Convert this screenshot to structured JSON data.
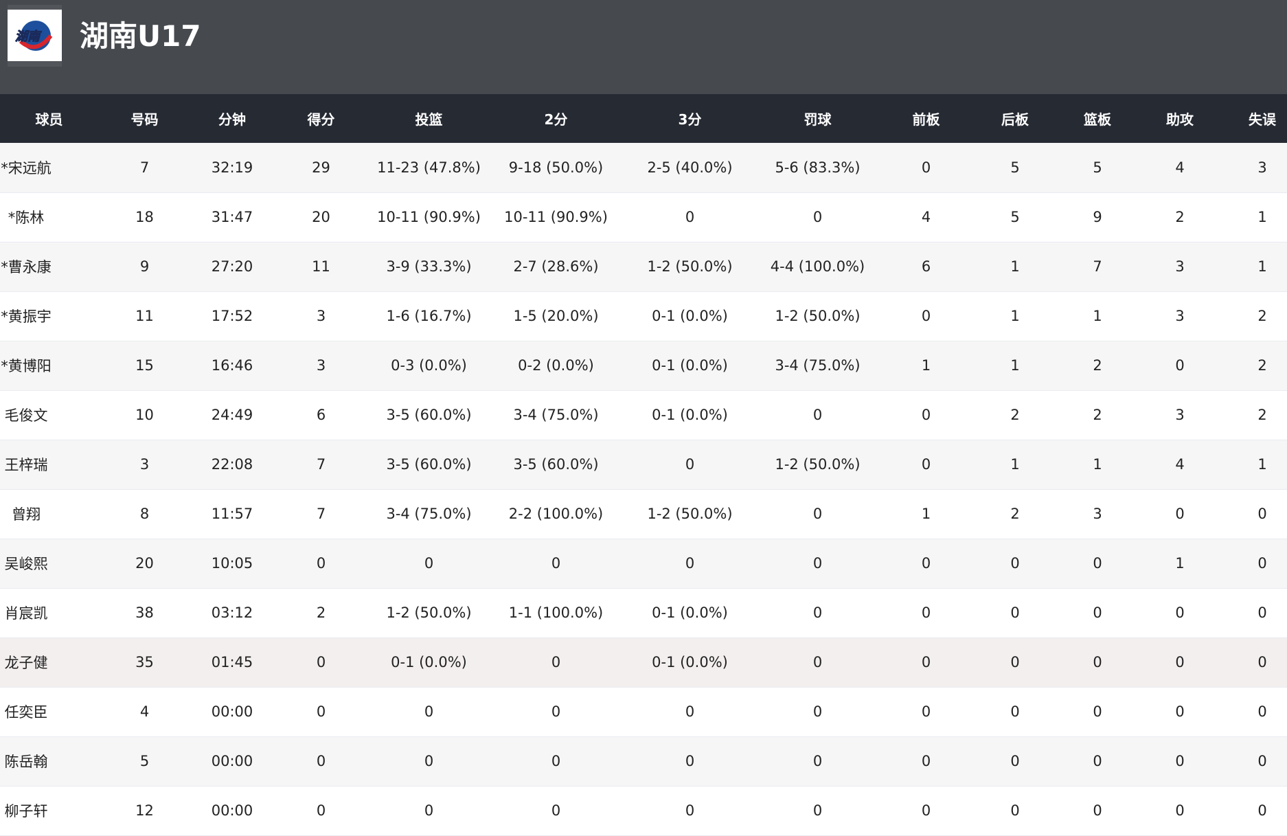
{
  "team": {
    "name": "湖南U17",
    "logo_text": "湖南"
  },
  "columns": [
    "球员",
    "号码",
    "分钟",
    "得分",
    "投篮",
    "2分",
    "3分",
    "罚球",
    "前板",
    "后板",
    "篮板",
    "助攻",
    "失误"
  ],
  "rows": [
    [
      "*宋远航",
      "7",
      "32:19",
      "29",
      "11-23 (47.8%)",
      "9-18 (50.0%)",
      "2-5 (40.0%)",
      "5-6 (83.3%)",
      "0",
      "5",
      "5",
      "4",
      "3"
    ],
    [
      "*陈林",
      "18",
      "31:47",
      "20",
      "10-11 (90.9%)",
      "10-11 (90.9%)",
      "0",
      "0",
      "4",
      "5",
      "9",
      "2",
      "1"
    ],
    [
      "*曹永康",
      "9",
      "27:20",
      "11",
      "3-9 (33.3%)",
      "2-7 (28.6%)",
      "1-2 (50.0%)",
      "4-4 (100.0%)",
      "6",
      "1",
      "7",
      "3",
      "1"
    ],
    [
      "*黄振宇",
      "11",
      "17:52",
      "3",
      "1-6 (16.7%)",
      "1-5 (20.0%)",
      "0-1 (0.0%)",
      "1-2 (50.0%)",
      "0",
      "1",
      "1",
      "3",
      "2"
    ],
    [
      "*黄博阳",
      "15",
      "16:46",
      "3",
      "0-3 (0.0%)",
      "0-2 (0.0%)",
      "0-1 (0.0%)",
      "3-4 (75.0%)",
      "1",
      "1",
      "2",
      "0",
      "2"
    ],
    [
      "毛俊文",
      "10",
      "24:49",
      "6",
      "3-5 (60.0%)",
      "3-4 (75.0%)",
      "0-1 (0.0%)",
      "0",
      "0",
      "2",
      "2",
      "3",
      "2"
    ],
    [
      "王梓瑞",
      "3",
      "22:08",
      "7",
      "3-5 (60.0%)",
      "3-5 (60.0%)",
      "0",
      "1-2 (50.0%)",
      "0",
      "1",
      "1",
      "4",
      "1"
    ],
    [
      "曾翔",
      "8",
      "11:57",
      "7",
      "3-4 (75.0%)",
      "2-2 (100.0%)",
      "1-2 (50.0%)",
      "0",
      "1",
      "2",
      "3",
      "0",
      "0"
    ],
    [
      "吴峻熙",
      "20",
      "10:05",
      "0",
      "0",
      "0",
      "0",
      "0",
      "0",
      "0",
      "0",
      "1",
      "0"
    ],
    [
      "肖宸凯",
      "38",
      "03:12",
      "2",
      "1-2 (50.0%)",
      "1-1 (100.0%)",
      "0-1 (0.0%)",
      "0",
      "0",
      "0",
      "0",
      "0",
      "0"
    ],
    [
      "龙子健",
      "35",
      "01:45",
      "0",
      "0-1 (0.0%)",
      "0",
      "0-1 (0.0%)",
      "0",
      "0",
      "0",
      "0",
      "0",
      "0"
    ],
    [
      "任奕臣",
      "4",
      "00:00",
      "0",
      "0",
      "0",
      "0",
      "0",
      "0",
      "0",
      "0",
      "0",
      "0"
    ],
    [
      "陈岳翰",
      "5",
      "00:00",
      "0",
      "0",
      "0",
      "0",
      "0",
      "0",
      "0",
      "0",
      "0",
      "0"
    ],
    [
      "柳子轩",
      "12",
      "00:00",
      "0",
      "0",
      "0",
      "0",
      "0",
      "0",
      "0",
      "0",
      "0",
      "0"
    ]
  ],
  "highlighted_row": 10
}
